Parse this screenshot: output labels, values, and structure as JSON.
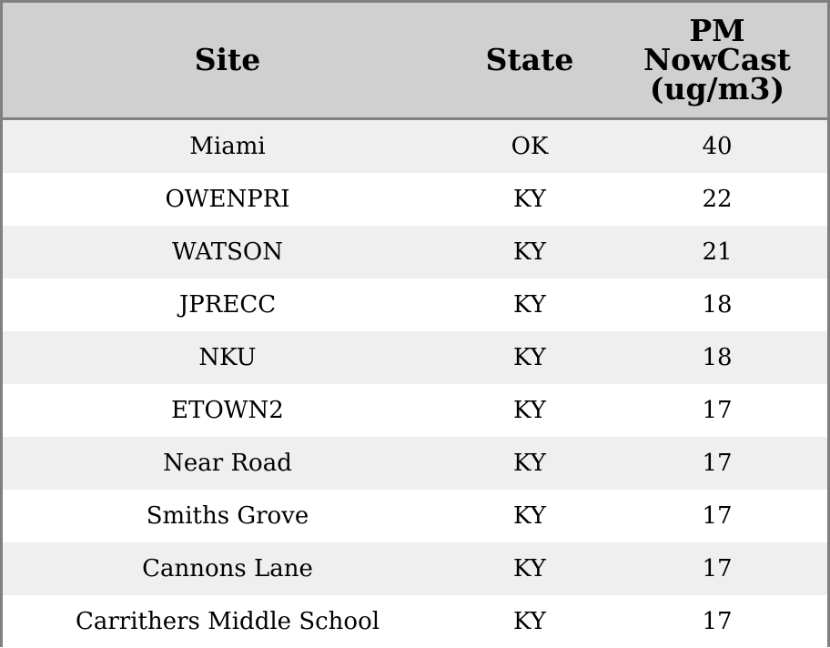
{
  "chart_data": {
    "type": "table",
    "columns": [
      "Site",
      "State",
      "PM\nNowCast\n(ug/m3)"
    ],
    "rows": [
      {
        "site": "Miami",
        "state": "OK",
        "pm": 40
      },
      {
        "site": "OWENPRI",
        "state": "KY",
        "pm": 22
      },
      {
        "site": "WATSON",
        "state": "KY",
        "pm": 21
      },
      {
        "site": "JPRECC",
        "state": "KY",
        "pm": 18
      },
      {
        "site": "NKU",
        "state": "KY",
        "pm": 18
      },
      {
        "site": "ETOWN2",
        "state": "KY",
        "pm": 17
      },
      {
        "site": "Near Road",
        "state": "KY",
        "pm": 17
      },
      {
        "site": "Smiths Grove",
        "state": "KY",
        "pm": 17
      },
      {
        "site": "Cannons Lane",
        "state": "KY",
        "pm": 17
      },
      {
        "site": "Carrithers Middle School",
        "state": "KY",
        "pm": 17
      }
    ]
  },
  "colors": {
    "header_bg": "#d0d0d0",
    "row_alt_bg": "#efefef",
    "row_bg": "#ffffff",
    "border": "#808080"
  }
}
